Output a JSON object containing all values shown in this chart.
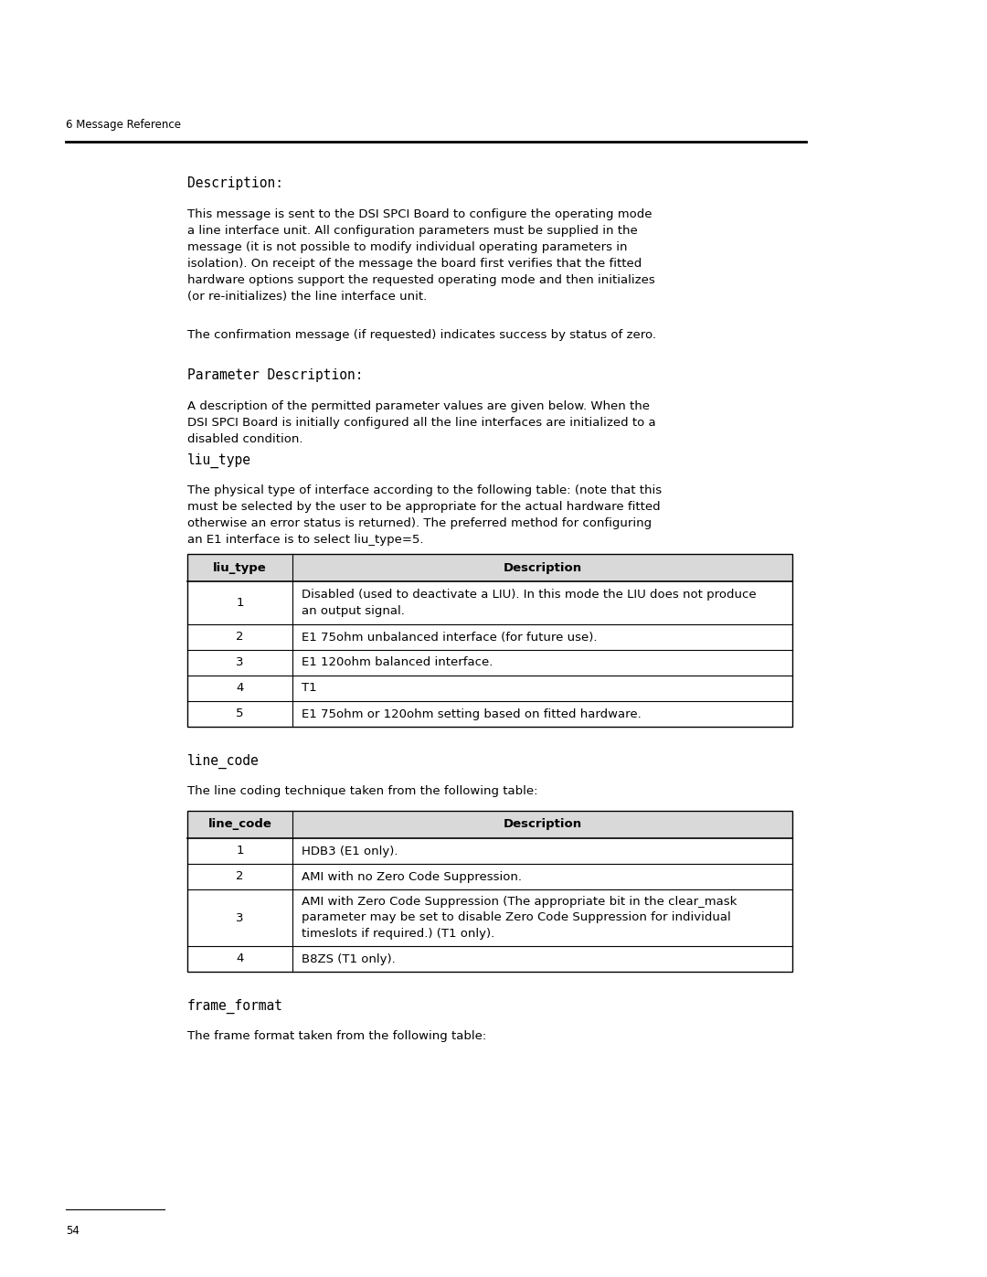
{
  "header_text": "6 Message Reference",
  "page_number": "54",
  "description_label": "Description:",
  "description_body": "This message is sent to the DSI SPCI Board to configure the operating mode\na line interface unit. All configuration parameters must be supplied in the\nmessage (it is not possible to modify individual operating parameters in\nisolation). On receipt of the message the board first verifies that the fitted\nhardware options support the requested operating mode and then initializes\n(or re-initializes) the line interface unit.",
  "confirmation_text": "The confirmation message (if requested) indicates success by status of zero.",
  "param_desc_label": "Parameter Description:",
  "param_desc_body": "A description of the permitted parameter values are given below. When the\nDSI SPCI Board is initially configured all the line interfaces are initialized to a\ndisabled condition.",
  "liu_type_label": "liu_type",
  "liu_type_body": "The physical type of interface according to the following table: (note that this\nmust be selected by the user to be appropriate for the actual hardware fitted\notherwise an error status is returned). The preferred method for configuring\nan E1 interface is to select liu_type=5.",
  "liu_table_headers": [
    "liu_type",
    "Description"
  ],
  "liu_table_rows": [
    [
      "1",
      "Disabled (used to deactivate a LIU). In this mode the LIU does not produce\nan output signal."
    ],
    [
      "2",
      "E1 75ohm unbalanced interface (for future use)."
    ],
    [
      "3",
      "E1 120ohm balanced interface."
    ],
    [
      "4",
      "T1"
    ],
    [
      "5",
      "E1 75ohm or 120ohm setting based on fitted hardware."
    ]
  ],
  "line_code_label": "line_code",
  "line_code_body": "The line coding technique taken from the following table:",
  "line_table_headers": [
    "line_code",
    "Description"
  ],
  "line_table_rows": [
    [
      "1",
      "HDB3 (E1 only)."
    ],
    [
      "2",
      "AMI with no Zero Code Suppression."
    ],
    [
      "3",
      "AMI with Zero Code Suppression (The appropriate bit in the clear_mask\nparameter may be set to disable Zero Code Suppression for individual\ntimeslots if required.) (T1 only)."
    ],
    [
      "4",
      "B8ZS (T1 only)."
    ]
  ],
  "frame_format_label": "frame_format",
  "frame_format_body": "The frame format taken from the following table:",
  "bg_color": "#ffffff",
  "table_border": "#000000",
  "table_header_bg": "#d9d9d9",
  "text_color": "#000000",
  "header_line_color": "#000000"
}
